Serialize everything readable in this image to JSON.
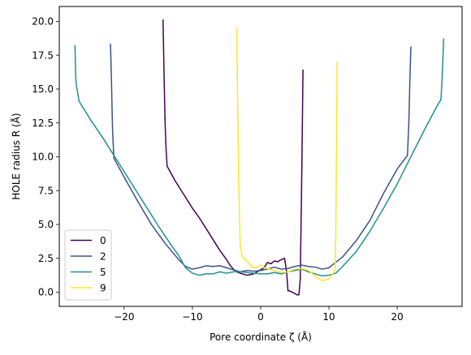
{
  "chart_data": {
    "type": "line",
    "title": "",
    "xlabel": "Pore coordinate ζ (Å)",
    "ylabel": "HOLE radius R (Å)",
    "xlim": [
      -29.5,
      29.5
    ],
    "ylim": [
      -1.05,
      21.1
    ],
    "xticks": [
      -20,
      -10,
      0,
      10,
      20
    ],
    "xtick_labels": [
      "−20",
      "−10",
      "0",
      "10",
      "20"
    ],
    "yticks": [
      0.0,
      2.5,
      5.0,
      7.5,
      10.0,
      12.5,
      15.0,
      17.5,
      20.0
    ],
    "ytick_labels": [
      "0.0",
      "2.5",
      "5.0",
      "7.5",
      "10.0",
      "12.5",
      "15.0",
      "17.5",
      "20.0"
    ],
    "grid": false,
    "legend": {
      "position": "lower-left"
    },
    "series": [
      {
        "name": "0",
        "color": "#440154",
        "x": [
          -14.3,
          -14.15,
          -14.0,
          -13.85,
          -13.7,
          -12.5,
          -11.0,
          -10.0,
          -9.0,
          -8.0,
          -7.0,
          -6.0,
          -5.0,
          -4.5,
          -4.0,
          -3.5,
          -3.0,
          -2.0,
          -1.0,
          -0.2,
          0.5,
          1.0,
          1.5,
          2.0,
          2.5,
          3.0,
          3.5,
          3.8,
          4.0,
          4.2,
          4.6,
          5.0,
          5.3,
          5.6,
          5.8,
          6.0,
          6.2
        ],
        "y": [
          20.1,
          16.0,
          12.5,
          10.5,
          9.3,
          8.2,
          7.0,
          6.2,
          5.5,
          4.7,
          3.9,
          3.1,
          2.4,
          2.0,
          1.7,
          1.5,
          1.4,
          1.25,
          1.35,
          1.6,
          1.8,
          2.2,
          2.1,
          2.3,
          2.25,
          2.4,
          2.5,
          1.5,
          0.1,
          0.1,
          0.0,
          -0.1,
          -0.2,
          -0.2,
          1.0,
          8.0,
          16.4
        ]
      },
      {
        "name": "2",
        "color": "#3b528b",
        "x": [
          -22.0,
          -21.85,
          -21.7,
          -21.5,
          -20.0,
          -18.0,
          -16.0,
          -14.0,
          -12.0,
          -11.0,
          -10.0,
          -9.0,
          -8.0,
          -7.0,
          -6.0,
          -5.0,
          -4.0,
          -3.0,
          -2.0,
          -1.0,
          0.0,
          1.0,
          2.0,
          3.0,
          4.0,
          5.0,
          6.0,
          7.0,
          8.0,
          9.0,
          10.0,
          11.0,
          12.0,
          14.0,
          16.0,
          18.0,
          20.0,
          21.5,
          21.7,
          21.85,
          22.0
        ],
        "y": [
          18.3,
          15.5,
          12.0,
          9.9,
          8.5,
          6.7,
          5.0,
          3.6,
          2.4,
          1.9,
          1.7,
          1.8,
          1.95,
          1.9,
          1.95,
          1.8,
          1.65,
          1.5,
          1.6,
          1.55,
          1.6,
          1.7,
          1.85,
          1.7,
          1.75,
          1.9,
          2.0,
          1.9,
          1.85,
          1.7,
          1.8,
          2.2,
          2.6,
          3.8,
          5.3,
          7.3,
          9.1,
          10.1,
          12.5,
          15.5,
          18.1
        ]
      },
      {
        "name": "5",
        "color": "#21918c",
        "x": [
          -27.2,
          -27.1,
          -27.0,
          -26.8,
          -26.6,
          -25.0,
          -23.0,
          -21.0,
          -19.0,
          -17.0,
          -15.0,
          -13.0,
          -12.0,
          -11.0,
          -10.0,
          -9.0,
          -8.0,
          -7.0,
          -6.0,
          -5.0,
          -4.0,
          -3.0,
          -2.0,
          -1.0,
          0.0,
          1.0,
          2.0,
          3.0,
          4.0,
          5.0,
          6.0,
          7.0,
          8.0,
          9.0,
          10.0,
          11.0,
          12.0,
          14.0,
          16.0,
          18.0,
          20.0,
          22.0,
          24.0,
          26.0,
          26.4,
          26.6,
          26.8
        ],
        "y": [
          18.2,
          16.0,
          15.3,
          14.7,
          14.1,
          12.8,
          11.3,
          9.7,
          8.1,
          6.5,
          4.9,
          3.4,
          2.7,
          1.8,
          1.4,
          1.25,
          1.35,
          1.35,
          1.5,
          1.4,
          1.5,
          1.5,
          1.45,
          1.4,
          1.35,
          1.35,
          1.45,
          1.35,
          1.5,
          1.6,
          1.7,
          1.5,
          1.35,
          1.2,
          1.25,
          1.4,
          1.9,
          3.0,
          4.5,
          6.2,
          8.0,
          10.0,
          12.0,
          13.9,
          14.2,
          16.0,
          18.7
        ]
      },
      {
        "name": "9",
        "color": "#fde725",
        "x": [
          -3.5,
          -3.4,
          -3.2,
          -3.0,
          -2.7,
          -2.0,
          -1.5,
          -1.0,
          -0.5,
          0.0,
          0.5,
          1.0,
          2.0,
          3.0,
          4.0,
          5.0,
          6.0,
          7.0,
          7.5,
          8.0,
          8.5,
          9.0,
          9.5,
          10.0,
          10.5,
          10.9,
          11.0,
          11.1,
          11.2
        ],
        "y": [
          19.5,
          15.0,
          8.0,
          3.5,
          2.6,
          2.3,
          2.0,
          1.8,
          1.85,
          2.0,
          1.8,
          1.75,
          1.6,
          1.45,
          1.5,
          1.7,
          1.75,
          1.6,
          1.4,
          1.15,
          1.0,
          0.85,
          0.9,
          1.0,
          1.3,
          1.6,
          4.0,
          10.0,
          17.0
        ]
      }
    ]
  }
}
